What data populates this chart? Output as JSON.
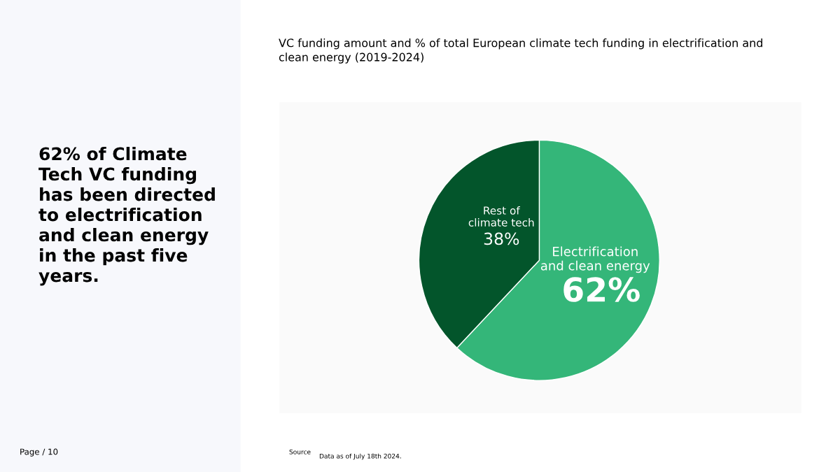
{
  "chart_data": {
    "type": "pie",
    "title": "62% of Climate\nTech VC funding\nhas been directed\nto electrification\nand clean energy\nin the past five\nyears.",
    "subtitle": "VC funding amount and % of total European climate tech funding in electrification and\nclean energy (2019-2024)",
    "categories": [
      "Electrification\nand clean energy",
      "Rest of\nclimate tech"
    ],
    "values": [
      62,
      38
    ],
    "colors": [
      "#34b679",
      "#03552b"
    ],
    "value_labels": [
      "62%",
      "38%"
    ],
    "annotations": [
      "Page / 10",
      "Source",
      "Data as of July 18th 2024."
    ]
  }
}
